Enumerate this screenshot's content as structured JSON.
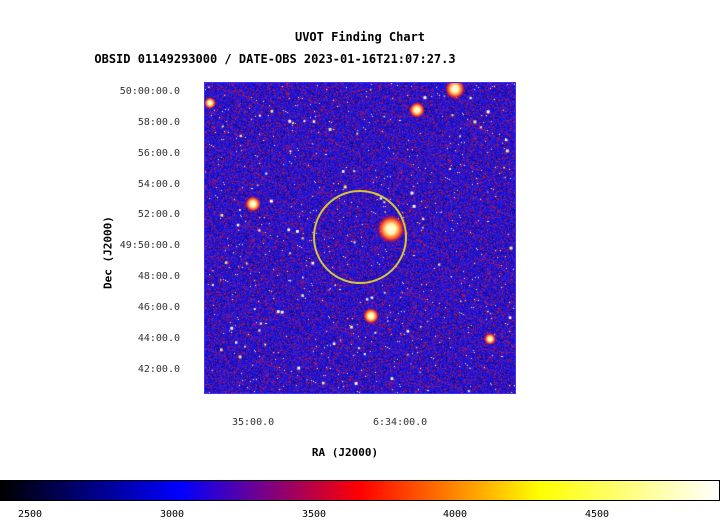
{
  "header": {
    "title": "UVOT Finding Chart",
    "subtitle": "OBSID 01149293000 / DATE-OBS 2023-01-16T21:07:27.3"
  },
  "axes": {
    "ylabel": "Dec (J2000)",
    "xlabel": "RA (J2000)",
    "dec_ticks": [
      "50:00:00.0",
      "58:00.0",
      "56:00.0",
      "54:00.0",
      "52:00.0",
      "49:50:00.0",
      "48:00.0",
      "46:00.0",
      "44:00.0",
      "42:00.0"
    ],
    "ra_ticks": [
      "35:00.0",
      "6:34:00.0"
    ]
  },
  "colorbar": {
    "ticks": [
      "2500",
      "3000",
      "3500",
      "4000",
      "4500"
    ],
    "colors": [
      "#000000",
      "#0000ff",
      "#ff0000",
      "#ffff00",
      "#ffffff"
    ]
  },
  "image": {
    "background_color": "#1a10cf",
    "circle_color": "#d2c63a"
  }
}
